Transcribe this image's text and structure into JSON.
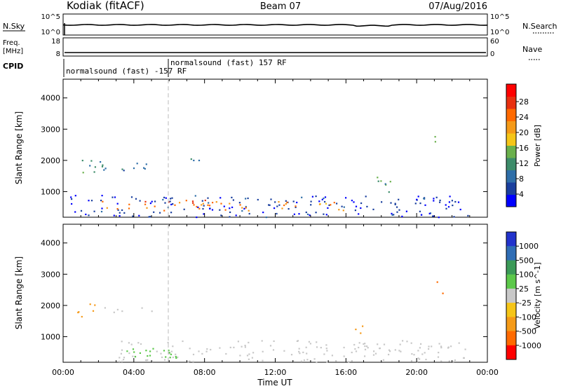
{
  "header": {
    "station": "Kodiak (fitACF)",
    "beam": "Beam 07",
    "date": "07/Aug/2016"
  },
  "left_labels": {
    "nsky": "N.Sky",
    "freq_line1": "Freq.",
    "freq_line2": "[MHz]",
    "cpid": "CPID"
  },
  "right_labels": {
    "nsearch": "N.Search",
    "nave": "Nave"
  },
  "noise_panel": {
    "left_ticks": [
      "10^5",
      "10^0"
    ],
    "right_ticks": [
      "10^5",
      "10^0"
    ]
  },
  "freq_panel": {
    "left_ticks": [
      "18",
      "8"
    ],
    "right_ticks": [
      "60",
      "0"
    ]
  },
  "cpid_panel": {
    "segments": [
      {
        "label": "normalsound (fast) -157 RF",
        "start_hour": 0
      },
      {
        "label": "normalsound (fast) 157 RF",
        "start_hour": 6
      }
    ]
  },
  "time_axis": {
    "label": "Time UT",
    "ticks": [
      "00:00",
      "04:00",
      "08:00",
      "12:00",
      "16:00",
      "20:00",
      "00:00"
    ]
  },
  "range_axis": {
    "label": "Slant Range [km]",
    "ticks": [
      "4000",
      "3000",
      "2000",
      "1000"
    ]
  },
  "power_scale": {
    "label": "Power [dB]",
    "ticks": [
      "28",
      "24",
      "20",
      "16",
      "12",
      "8",
      "4"
    ],
    "colors": [
      "#0000ff",
      "#1a3f9e",
      "#2e6ea8",
      "#3d8c6a",
      "#6ab04c",
      "#f5c518",
      "#f59a18",
      "#ff6a00",
      "#e83010",
      "#ff0000"
    ]
  },
  "velocity_scale": {
    "label": "Velocity [m s^-1]",
    "ticks": [
      "1000",
      "500",
      "100",
      "25",
      "-25",
      "-100",
      "-500",
      "-1000"
    ],
    "colors": [
      "#2233cc",
      "#2f6db5",
      "#3b9a58",
      "#5cc84a",
      "#c8c8c8",
      "#f5c518",
      "#f59a18",
      "#ff6a00",
      "#ff0000"
    ]
  },
  "chart_data": [
    {
      "type": "heatmap",
      "title": "Power",
      "xlabel": "Time UT",
      "ylabel": "Slant Range [km]",
      "xlim": [
        0,
        24
      ],
      "ylim": [
        180,
        4600
      ],
      "colorbar_label": "Power [dB]",
      "colorbar_range": [
        0,
        32
      ],
      "regions": [
        {
          "t0": 0.4,
          "t1": 23.0,
          "r0": 200,
          "r1": 900,
          "level": 4
        },
        {
          "t0": 2.0,
          "t1": 10.5,
          "r0": 400,
          "r1": 750,
          "level": 24
        },
        {
          "t0": 12.0,
          "t1": 16.0,
          "r0": 400,
          "r1": 700,
          "level": 22
        },
        {
          "t0": 0.8,
          "t1": 2.2,
          "r0": 1600,
          "r1": 2100,
          "level": 12
        },
        {
          "t0": 2.0,
          "t1": 5.0,
          "r0": 1700,
          "r1": 2000,
          "level": 8
        },
        {
          "t0": 6.8,
          "t1": 7.8,
          "r0": 1900,
          "r1": 2200,
          "level": 8
        },
        {
          "t0": 17.5,
          "t1": 18.5,
          "r0": 900,
          "r1": 1500,
          "level": 12
        },
        {
          "t0": 21.0,
          "t1": 21.5,
          "r0": 2400,
          "r1": 2800,
          "level": 12
        }
      ]
    },
    {
      "type": "heatmap",
      "title": "Velocity",
      "xlabel": "Time UT",
      "ylabel": "Slant Range [km]",
      "xlim": [
        0,
        24
      ],
      "ylim": [
        180,
        4600
      ],
      "colorbar_label": "Velocity [m s^-1]",
      "colorbar_range": [
        -1000,
        1000
      ],
      "regions": [
        {
          "t0": 3.0,
          "t1": 23.0,
          "r0": 200,
          "r1": 900,
          "level": 0
        },
        {
          "t0": 2.5,
          "t1": 6.5,
          "r0": 300,
          "r1": 700,
          "level": 100
        },
        {
          "t0": 0.8,
          "t1": 1.8,
          "r0": 1600,
          "r1": 2100,
          "level": -300
        },
        {
          "t0": 2.2,
          "t1": 5.0,
          "r0": 1800,
          "r1": 2000,
          "level": 0
        },
        {
          "t0": 16.5,
          "t1": 17.0,
          "r0": 900,
          "r1": 1500,
          "level": -200
        },
        {
          "t0": 21.0,
          "t1": 21.5,
          "r0": 2400,
          "r1": 2800,
          "level": -400
        }
      ]
    }
  ]
}
